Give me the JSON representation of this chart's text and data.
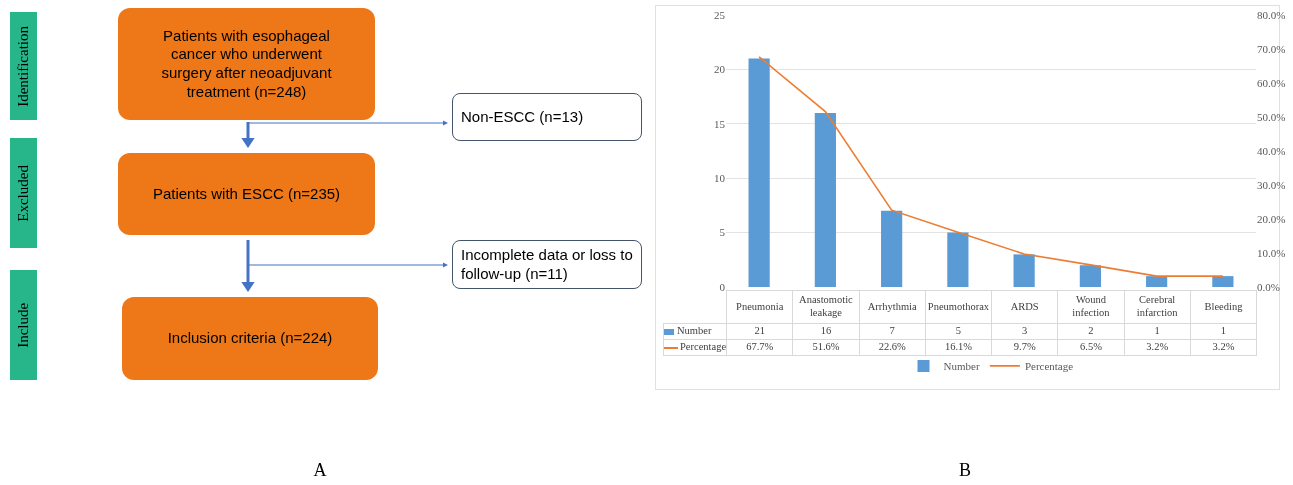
{
  "chart_data": [
    {
      "type": "other",
      "annotations": [
        "Identification",
        "Patients with esophageal cancer who underwent surgery after neoadjuvant treatment (n=248)",
        "Non-ESCC (n=13)",
        "Excluded",
        "Patients with ESCC (n=235)",
        "Incomplete data or loss to follow-up (n=11)",
        "Include",
        "Inclusion criteria (n=224)",
        "A"
      ]
    },
    {
      "type": "bar",
      "categories": [
        "Pneumonia",
        "Anastomotic leakage",
        "Arrhythmia",
        "Pneumothorax",
        "ARDS",
        "Wound infection",
        "Cerebral infarction",
        "Bleeding"
      ],
      "series": [
        {
          "name": "Number",
          "color": "#5b9bd5",
          "values": [
            21,
            16,
            7,
            5,
            3,
            2,
            1,
            1
          ],
          "value_labels": [
            "21",
            "16",
            "7",
            "5",
            "3",
            "2",
            "1",
            "1"
          ]
        },
        {
          "name": "Percentage",
          "type": "line",
          "axis": "y2",
          "color": "#ed7d31",
          "values": [
            67.7,
            51.6,
            22.6,
            16.1,
            9.7,
            6.5,
            3.2,
            3.2
          ],
          "value_labels": [
            "67.7%",
            "51.6%",
            "22.6%",
            "16.1%",
            "9.7%",
            "6.5%",
            "3.2%",
            "3.2%"
          ]
        }
      ],
      "ylim": [
        0,
        25
      ],
      "yticks": [
        0,
        5,
        10,
        15,
        20,
        25
      ],
      "y2lim": [
        0,
        80
      ],
      "y2ticks": [
        {
          "value": 0,
          "label": "0.0%"
        },
        {
          "value": 10,
          "label": "10.0%"
        },
        {
          "value": 20,
          "label": "20.0%"
        },
        {
          "value": 30,
          "label": "30.0%"
        },
        {
          "value": 40,
          "label": "40.0%"
        },
        {
          "value": 50,
          "label": "50.0%"
        },
        {
          "value": 60,
          "label": "60.0%"
        },
        {
          "value": 70,
          "label": "70.0%"
        },
        {
          "value": 80,
          "label": "80.0%"
        }
      ],
      "grid": "y",
      "legend": "bottom",
      "annotations": [
        "B"
      ]
    }
  ]
}
